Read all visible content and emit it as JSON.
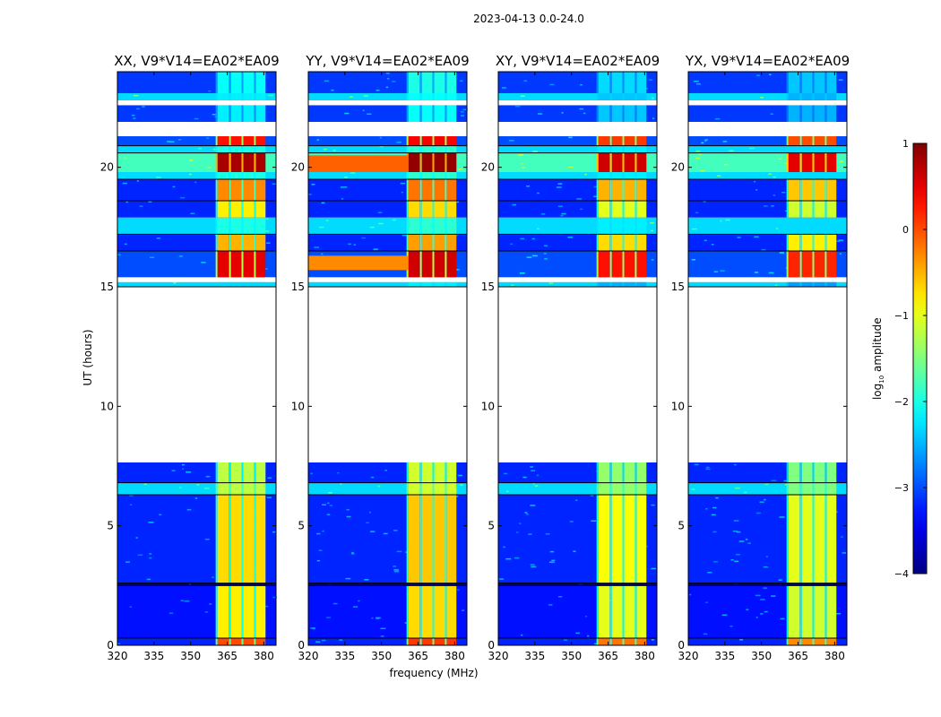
{
  "chart_data": {
    "type": "heatmap",
    "suptitle": "2023-04-13 0.0-24.0",
    "xlabel": "frequency (MHz)",
    "ylabel": "UT (hours)",
    "xlim": [
      320,
      385
    ],
    "ylim": [
      0,
      24
    ],
    "xticks": [
      "320",
      "335",
      "350",
      "365",
      "380"
    ],
    "xtick_values": [
      320,
      335,
      350,
      365,
      380
    ],
    "yticks": [
      "0",
      "5",
      "10",
      "15",
      "20"
    ],
    "ytick_values": [
      0,
      5,
      10,
      15,
      20
    ],
    "colorbar": {
      "label": "log10 amplitude",
      "label_main": "log",
      "label_sub": "10",
      "label_rest": " amplitude",
      "range": [
        -4,
        1
      ],
      "ticks": [
        "1",
        "0",
        "−1",
        "−2",
        "−3",
        "−4"
      ],
      "tick_values": [
        1,
        0,
        -1,
        -2,
        -3,
        -4
      ],
      "colormap": "jet"
    },
    "rfi_channels_mhz": [
      [
        361,
        365.7
      ],
      [
        366.5,
        370.9
      ],
      [
        371.6,
        376
      ],
      [
        376.7,
        380.7
      ]
    ],
    "panels": [
      {
        "title": "XX, V9*V14=EA02*EA09",
        "bg_offset": 0,
        "rfi_offset": 0,
        "broadband": []
      },
      {
        "title": "YY, V9*V14=EA02*EA09",
        "bg_offset": 0,
        "rfi_offset": 0.1,
        "broadband": [
          [
            19.8,
            20.5,
            0.2
          ],
          [
            15.7,
            16.3,
            0.0
          ]
        ]
      },
      {
        "title": "XY, V9*V14=EA02*EA09",
        "bg_offset": 0,
        "rfi_offset": -0.2,
        "broadband": []
      },
      {
        "title": "YX, V9*V14=EA02*EA09",
        "bg_offset": 0,
        "rfi_offset": -0.3,
        "broadband": []
      }
    ],
    "time_bands": [
      {
        "t": [
          0,
          0.3
        ],
        "bg": -3.2,
        "rfi": 0.0
      },
      {
        "t": [
          0.3,
          2.5
        ],
        "bg": -3.3,
        "rfi": -0.8
      },
      {
        "t": [
          2.5,
          2.6
        ],
        "bg": -4.0,
        "rfi": -4.0
      },
      {
        "t": [
          2.6,
          6.3
        ],
        "bg": -3.2,
        "rfi": -0.7
      },
      {
        "t": [
          6.3,
          6.8
        ],
        "bg": -2.3,
        "rfi": -1.2
      },
      {
        "t": [
          6.8,
          7.65
        ],
        "bg": -3.2,
        "rfi": -1.2
      },
      {
        "t": [
          7.65,
          15.0
        ],
        "flagged": true
      },
      {
        "t": [
          15.0,
          15.2
        ],
        "bg": -2.3,
        "rfi": -2.3
      },
      {
        "t": [
          15.2,
          15.4
        ],
        "flagged": true
      },
      {
        "t": [
          15.4,
          16.5
        ],
        "bg": -3.0,
        "rfi": 0.5
      },
      {
        "t": [
          16.5,
          17.2
        ],
        "bg": -3.2,
        "rfi": -0.5
      },
      {
        "t": [
          17.2,
          17.9
        ],
        "bg": -2.3,
        "rfi": -2.0
      },
      {
        "t": [
          17.9,
          18.6
        ],
        "bg": -3.2,
        "rfi": -0.8
      },
      {
        "t": [
          18.6,
          19.5
        ],
        "bg": -3.2,
        "rfi": -0.3
      },
      {
        "t": [
          19.5,
          19.8
        ],
        "bg": -2.3,
        "rfi": -2.0
      },
      {
        "t": [
          19.8,
          20.6
        ],
        "bg": -1.8,
        "rfi": 0.8
      },
      {
        "t": [
          20.6,
          20.9
        ],
        "bg": -2.3,
        "rfi": -2.0
      },
      {
        "t": [
          20.9,
          21.3
        ],
        "bg": -3.0,
        "rfi": 0.3
      },
      {
        "t": [
          21.3,
          21.9
        ],
        "flagged": true
      },
      {
        "t": [
          21.9,
          22.6
        ],
        "bg": -3.1,
        "rfi": -2.2
      },
      {
        "t": [
          22.6,
          22.8
        ],
        "flagged": true
      },
      {
        "t": [
          22.8,
          23.1
        ],
        "bg": -2.3,
        "rfi": -2.2
      },
      {
        "t": [
          23.1,
          24.0
        ],
        "bg": -3.1,
        "rfi": -2.1
      }
    ]
  }
}
